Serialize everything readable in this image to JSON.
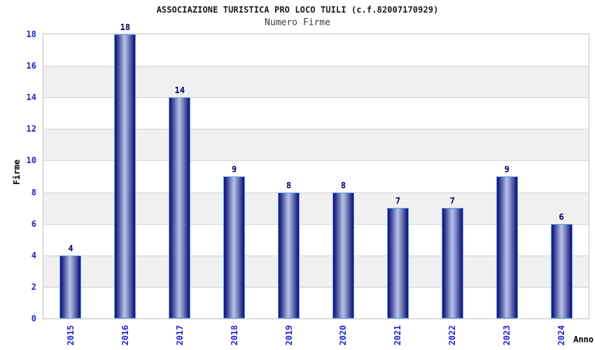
{
  "chart_data": {
    "type": "bar",
    "title": "ASSOCIAZIONE TURISTICA PRO LOCO TUILI (c.f.82007170929)",
    "subtitle": "Numero Firme",
    "xlabel": "Anno",
    "ylabel": "Firme",
    "categories": [
      "2015",
      "2016",
      "2017",
      "2018",
      "2019",
      "2020",
      "2021",
      "2022",
      "2023",
      "2024"
    ],
    "values": [
      4,
      18,
      14,
      9,
      8,
      8,
      7,
      7,
      9,
      6
    ],
    "ylim": [
      0,
      18
    ],
    "ytick_step": 2,
    "grid": "horizontal gridlines every 2 units with alternating white/gray bands",
    "legend": "none",
    "colors": {
      "bar_dark": "#1a1a7e",
      "bar_mid": "#5a64aa",
      "bar_light": "#aeb9e2",
      "bar_border": "#5aa0f0",
      "tick_label": "#2323cc",
      "value_label": "#000066",
      "band_gray": "#f0f0f0",
      "band_white": "#ffffff",
      "gridline": "#d4d4d4",
      "axis_border": "#c2c2c2",
      "title_color": "#1a1a1a",
      "subtitle_color": "#3c3c3c",
      "axis_title_color": "#000000"
    }
  }
}
